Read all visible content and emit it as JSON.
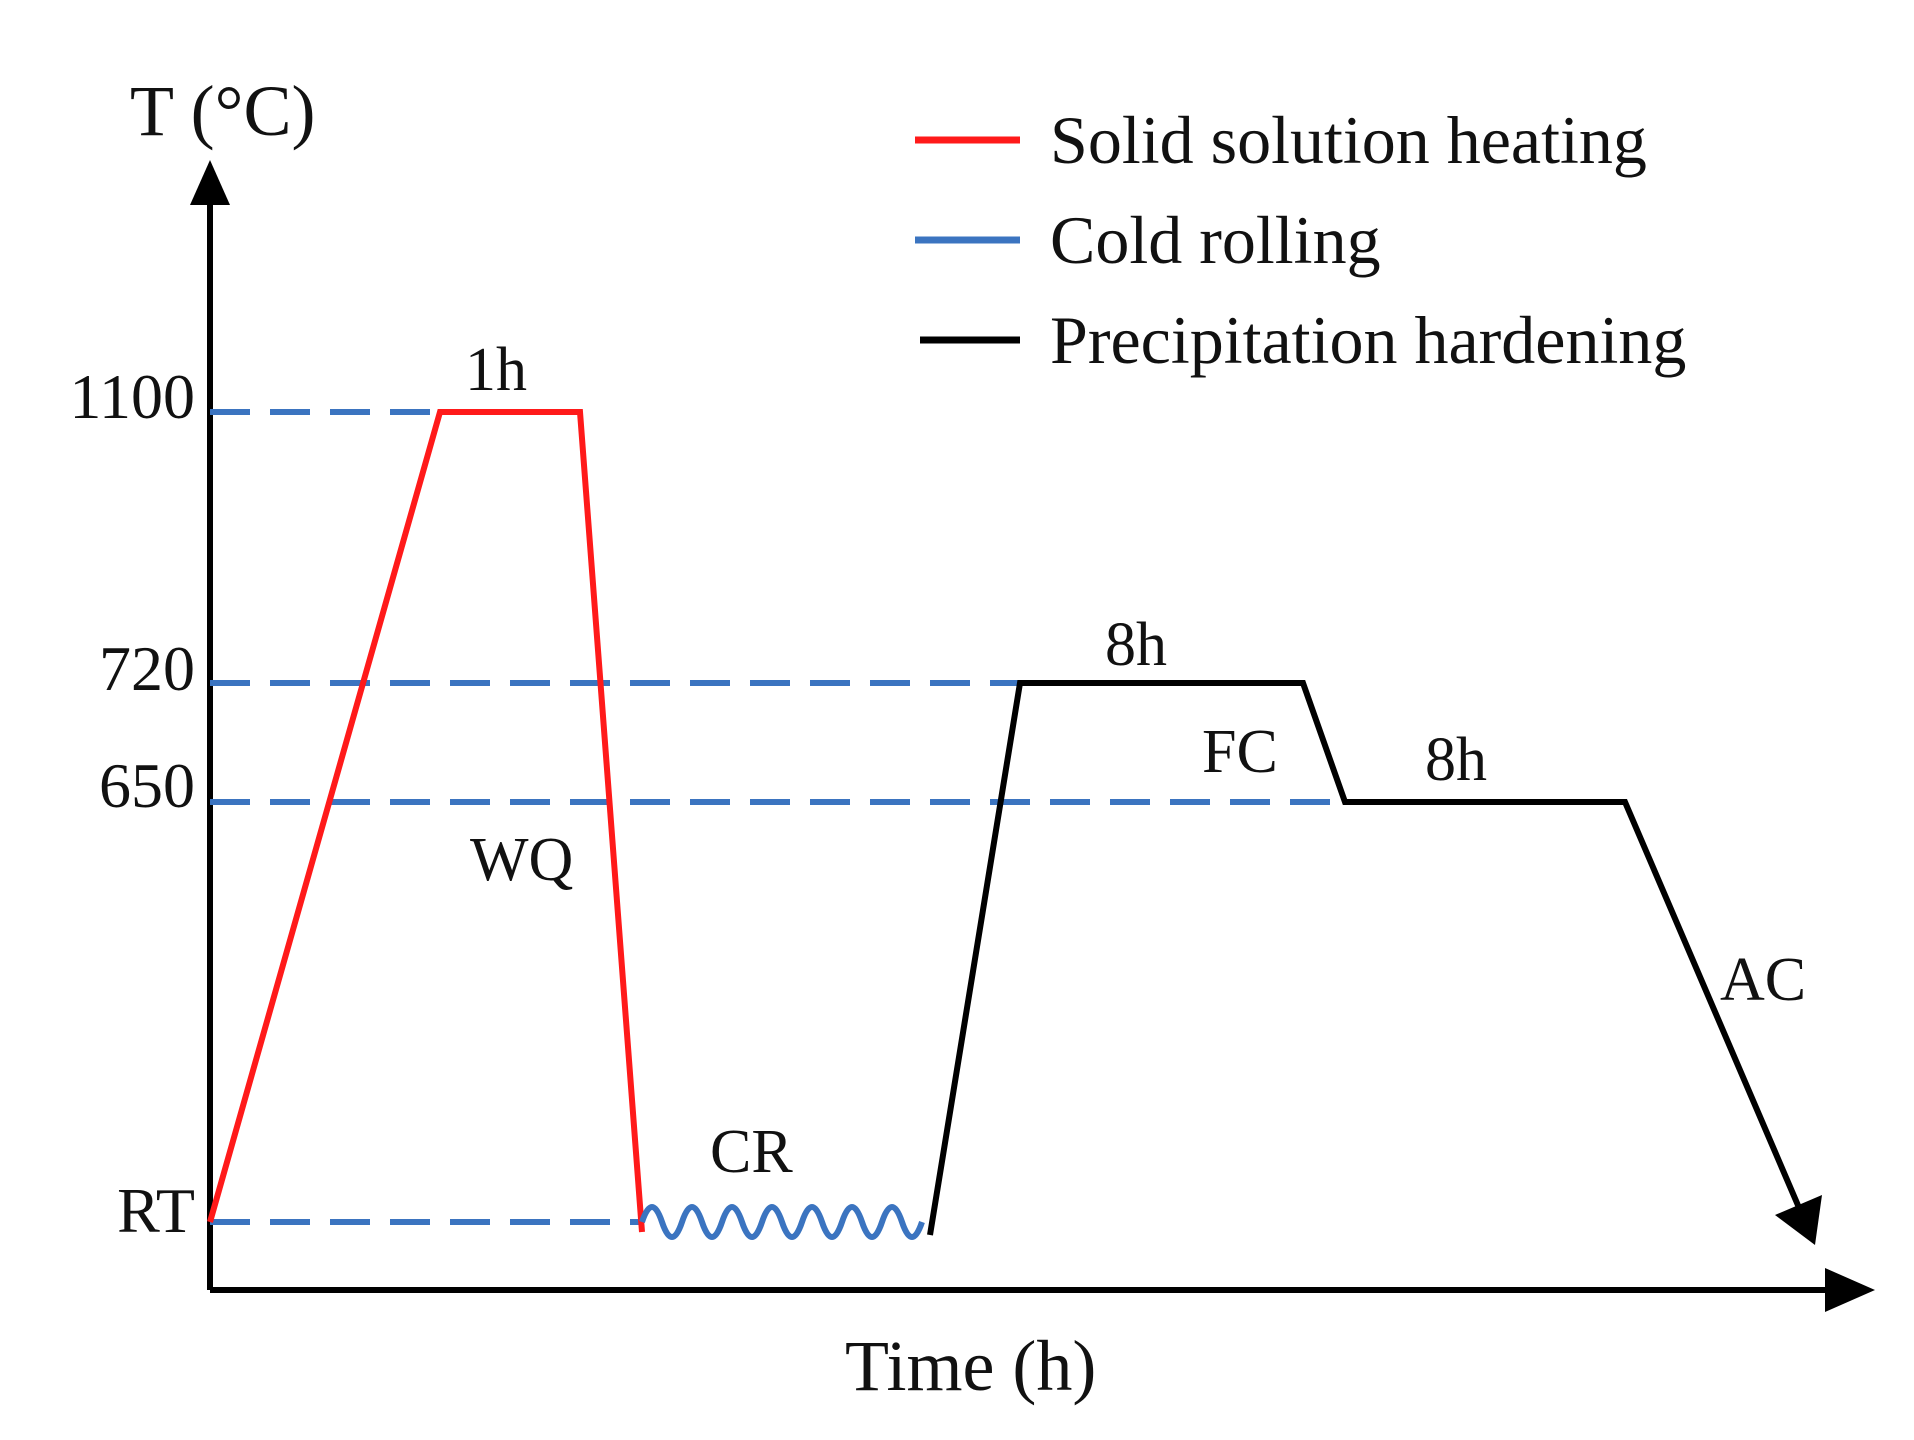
{
  "axes": {
    "y_label": "T (°C)",
    "x_label": "Time (h)"
  },
  "ticks": {
    "t1100": "1100",
    "t720": "720",
    "t650": "650",
    "rt": "RT"
  },
  "segments": [
    {
      "label": "1h"
    },
    {
      "label": "WQ"
    },
    {
      "label": "CR"
    },
    {
      "label": "8h"
    },
    {
      "label": "FC"
    },
    {
      "label": "8h"
    },
    {
      "label": "AC"
    }
  ],
  "legend": [
    {
      "label": "Solid solution heating",
      "color": "#ff1a1a"
    },
    {
      "label": "Cold rolling",
      "color": "#3b74c0"
    },
    {
      "label": "Precipitation hardening",
      "color": "#000000"
    }
  ],
  "colors": {
    "heating": "#ff1a1a",
    "rolling": "#3b74c0",
    "hardening": "#000000",
    "guide": "#3b74c0"
  }
}
